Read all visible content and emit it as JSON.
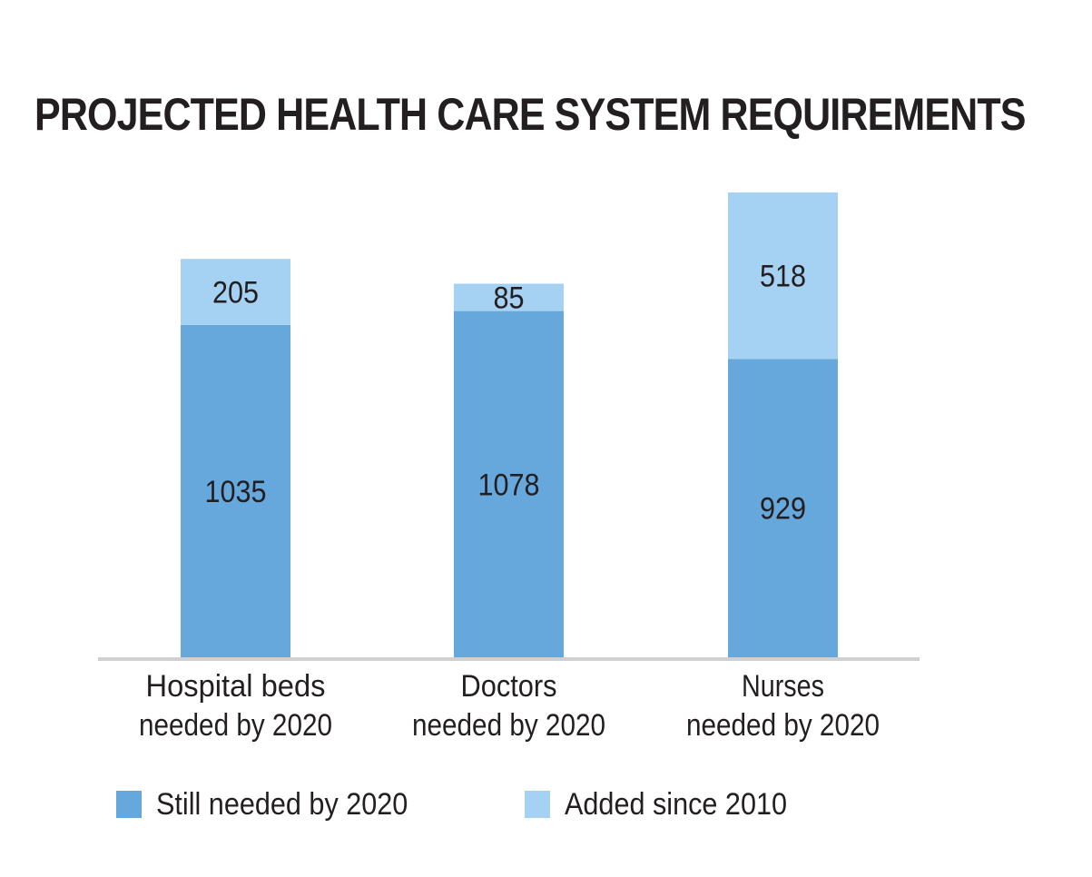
{
  "chart_data": {
    "type": "bar",
    "stacked": true,
    "title": "PROJECTED HEALTH CARE SYSTEM REQUIREMENTS",
    "categories": [
      [
        "Hospital beds",
        "needed by 2020"
      ],
      [
        "Doctors",
        "needed by 2020"
      ],
      [
        "Nurses",
        "needed by 2020"
      ]
    ],
    "series": [
      {
        "name": "Still needed by 2020",
        "values": [
          1035,
          1078,
          929
        ],
        "color": "#67a8dc"
      },
      {
        "name": "Added since 2010",
        "values": [
          205,
          85,
          518
        ],
        "color": "#a5d2f2"
      }
    ],
    "xlabel": "",
    "ylabel": "",
    "ylim": [
      0,
      1447
    ],
    "grid": false,
    "axis_color": "#d0d0d0",
    "legend_position": "bottom"
  }
}
